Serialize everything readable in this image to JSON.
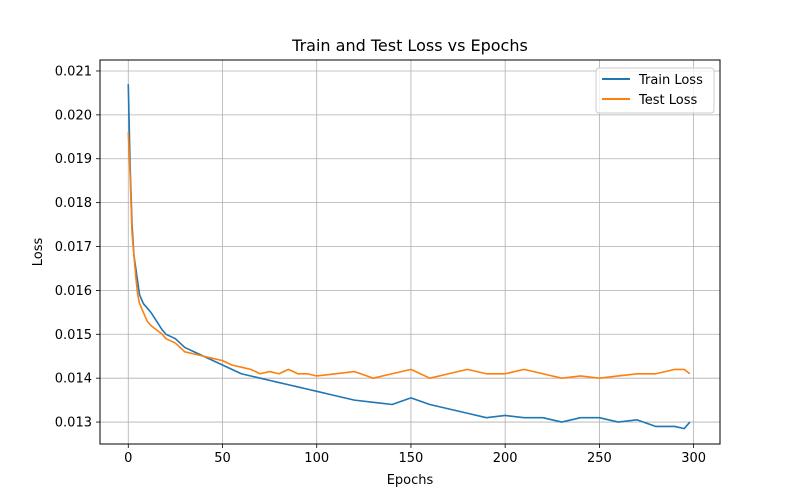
{
  "chart_data": {
    "type": "line",
    "title": "Train and Test Loss vs Epochs",
    "xlabel": "Epochs",
    "ylabel": "Loss",
    "xlim": [
      -15,
      314
    ],
    "ylim": [
      0.0125,
      0.02125
    ],
    "xticks": [
      0,
      50,
      100,
      150,
      200,
      250,
      300
    ],
    "xtick_labels": [
      "0",
      "50",
      "100",
      "150",
      "200",
      "250",
      "300"
    ],
    "yticks": [
      0.013,
      0.014,
      0.015,
      0.016,
      0.017,
      0.018,
      0.019,
      0.02,
      0.021
    ],
    "ytick_labels": [
      "0.013",
      "0.014",
      "0.015",
      "0.016",
      "0.017",
      "0.018",
      "0.019",
      "0.020",
      "0.021"
    ],
    "grid": true,
    "legend_position": "top-right",
    "series": [
      {
        "name": "Train Loss",
        "color": "#1f77b4",
        "x": [
          0,
          1,
          2,
          3,
          4,
          5,
          6,
          8,
          10,
          12,
          15,
          18,
          20,
          25,
          30,
          35,
          40,
          45,
          50,
          55,
          60,
          65,
          70,
          75,
          80,
          85,
          90,
          95,
          100,
          110,
          120,
          130,
          140,
          150,
          160,
          170,
          180,
          190,
          200,
          210,
          220,
          230,
          240,
          250,
          260,
          270,
          280,
          290,
          295,
          298
        ],
        "values": [
          0.0207,
          0.0188,
          0.0175,
          0.0168,
          0.0165,
          0.0162,
          0.0159,
          0.0157,
          0.0156,
          0.0155,
          0.0153,
          0.0151,
          0.015,
          0.0149,
          0.0147,
          0.0146,
          0.0145,
          0.0144,
          0.0143,
          0.0142,
          0.0141,
          0.01405,
          0.014,
          0.01395,
          0.0139,
          0.01385,
          0.0138,
          0.01375,
          0.0137,
          0.0136,
          0.0135,
          0.01345,
          0.0134,
          0.01355,
          0.0134,
          0.0133,
          0.0132,
          0.0131,
          0.01315,
          0.0131,
          0.0131,
          0.013,
          0.0131,
          0.0131,
          0.013,
          0.01305,
          0.0129,
          0.0129,
          0.01285,
          0.013
        ]
      },
      {
        "name": "Test Loss",
        "color": "#ff7f0e",
        "x": [
          0,
          1,
          2,
          3,
          4,
          5,
          6,
          8,
          10,
          12,
          15,
          18,
          20,
          25,
          30,
          35,
          40,
          45,
          50,
          55,
          60,
          65,
          70,
          75,
          80,
          85,
          90,
          95,
          100,
          110,
          120,
          130,
          140,
          150,
          160,
          170,
          180,
          190,
          200,
          210,
          220,
          230,
          240,
          250,
          260,
          270,
          280,
          290,
          295,
          298
        ],
        "values": [
          0.0196,
          0.0186,
          0.0173,
          0.0168,
          0.0163,
          0.0159,
          0.0157,
          0.0155,
          0.0153,
          0.0152,
          0.0151,
          0.015,
          0.0149,
          0.0148,
          0.0146,
          0.01455,
          0.0145,
          0.01445,
          0.0144,
          0.0143,
          0.01425,
          0.0142,
          0.0141,
          0.01415,
          0.0141,
          0.0142,
          0.0141,
          0.0141,
          0.01405,
          0.0141,
          0.01415,
          0.014,
          0.0141,
          0.0142,
          0.014,
          0.0141,
          0.0142,
          0.0141,
          0.0141,
          0.0142,
          0.0141,
          0.014,
          0.01405,
          0.014,
          0.01405,
          0.0141,
          0.0141,
          0.0142,
          0.0142,
          0.0141
        ]
      }
    ]
  }
}
